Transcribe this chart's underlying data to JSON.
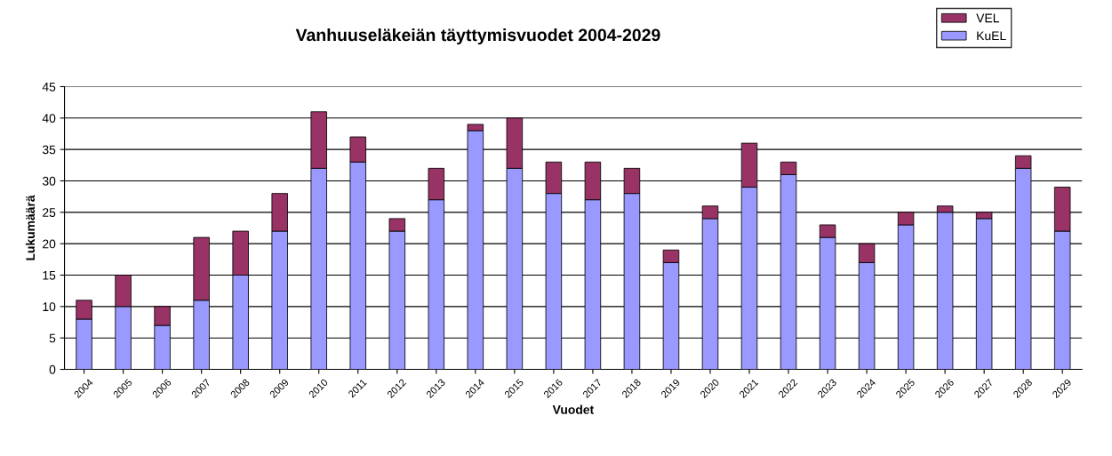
{
  "chart_data": {
    "type": "bar",
    "title": "Vanhuuseläkeiän täyttymisvuodet 2004-2029",
    "xlabel": "Vuodet",
    "ylabel": "Lukumäärä",
    "categories": [
      "2004",
      "2005",
      "2006",
      "2007",
      "2008",
      "2009",
      "2010",
      "2011",
      "2012",
      "2013",
      "2014",
      "2015",
      "2016",
      "2017",
      "2018",
      "2019",
      "2020",
      "2021",
      "2022",
      "2023",
      "2024",
      "2025",
      "2026",
      "2027",
      "2028",
      "2029"
    ],
    "stacked": true,
    "series": [
      {
        "name": "KuEL",
        "color": "#9999ff",
        "values": [
          8,
          10,
          7,
          11,
          15,
          22,
          32,
          33,
          22,
          27,
          38,
          32,
          28,
          27,
          28,
          17,
          24,
          29,
          31,
          21,
          17,
          23,
          25,
          24,
          32,
          22
        ]
      },
      {
        "name": "VEL",
        "color": "#993366",
        "values": [
          3,
          5,
          3,
          10,
          7,
          6,
          9,
          4,
          2,
          5,
          1,
          8,
          5,
          6,
          4,
          2,
          2,
          7,
          2,
          2,
          3,
          2,
          1,
          1,
          2,
          7
        ]
      }
    ],
    "ylim": [
      0,
      45
    ],
    "yticks": [
      0,
      5,
      10,
      15,
      20,
      25,
      30,
      35,
      40,
      45
    ],
    "grid": "y",
    "legend": "top right"
  }
}
